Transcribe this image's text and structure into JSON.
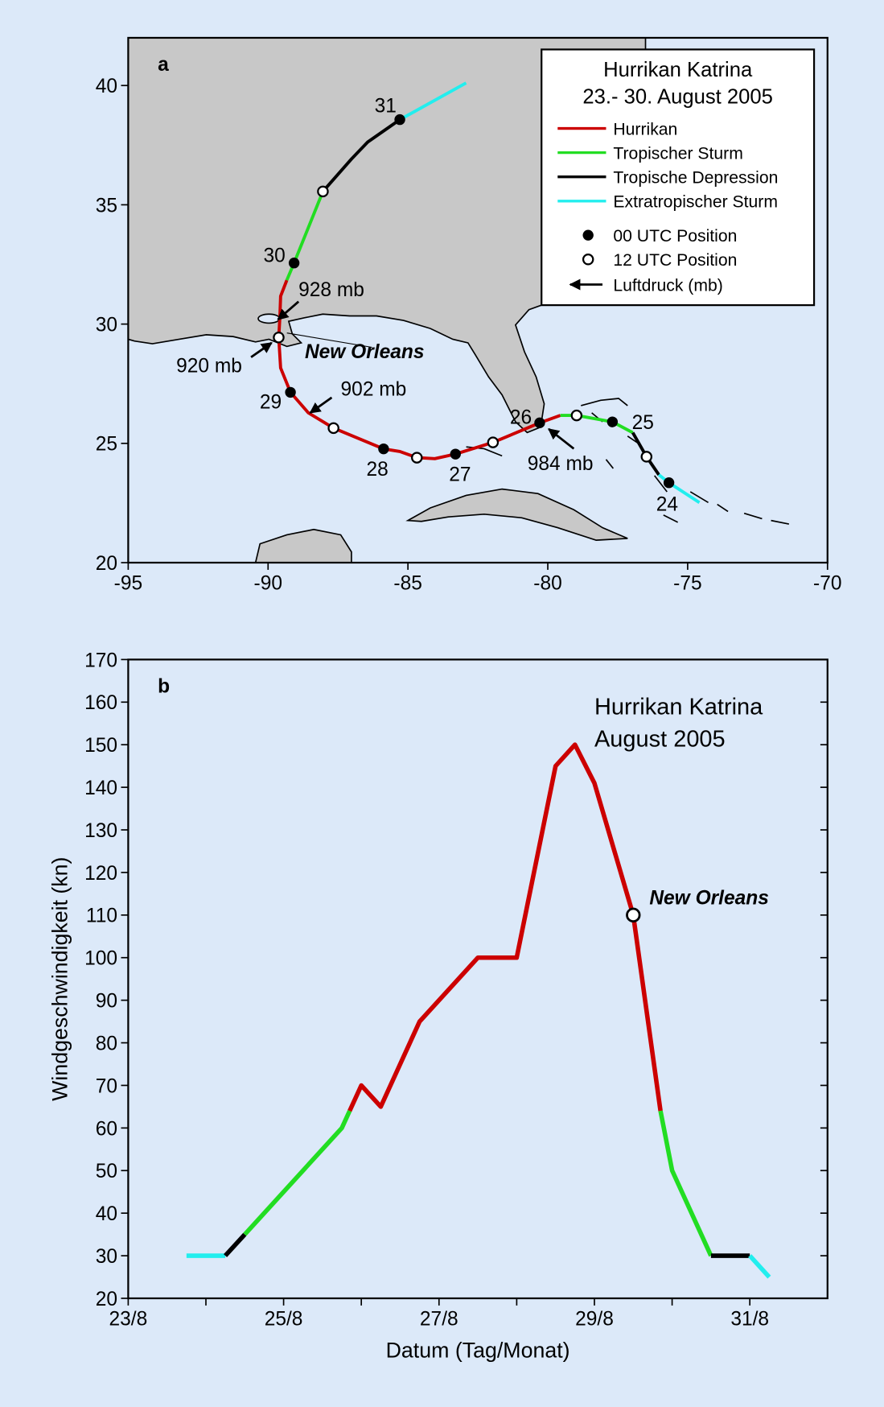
{
  "chart_data": [
    {
      "type": "map",
      "panel_label": "a",
      "title": "Hurrikan Katrina",
      "subtitle": "23.- 30. August 2005",
      "xlim": [
        -95,
        -70
      ],
      "ylim": [
        20,
        42
      ],
      "xticks": [
        -95,
        -90,
        -85,
        -80,
        -75,
        -70
      ],
      "yticks": [
        20,
        25,
        30,
        35,
        40
      ],
      "series": [
        {
          "name": "Hurrikan",
          "color": "#cc0000",
          "x": [
            -79.55,
            -80.29,
            -81.96,
            -83.3,
            -84.04,
            -84.68,
            -85.29,
            -85.87,
            -87.66,
            -88.56,
            -89.2,
            -89.55,
            -89.62,
            -89.58,
            -89.55,
            -89.33
          ],
          "values": [
            26.17,
            25.86,
            25.04,
            24.55,
            24.36,
            24.4,
            24.66,
            24.77,
            25.64,
            26.28,
            27.14,
            28.16,
            29.44,
            30.23,
            31.17,
            31.84
          ]
        },
        {
          "name": "Tropischer Sturm",
          "color": "#22dd22",
          "x": [
            -76.96,
            -77.69,
            -78.97,
            -79.55,
            null,
            -89.33,
            -89.07,
            -88.04
          ],
          "values": [
            25.45,
            25.9,
            26.17,
            26.17,
            null,
            31.84,
            32.56,
            35.56
          ]
        },
        {
          "name": "Tropische Depression",
          "color": "#000000",
          "x": [
            -76.03,
            -76.47,
            -76.96,
            null,
            -88.04,
            -87.02,
            -86.44,
            -85.29
          ],
          "values": [
            23.68,
            24.44,
            25.45,
            null,
            35.56,
            36.92,
            37.63,
            38.57
          ]
        },
        {
          "name": "Extratropischer Sturm",
          "color": "#22eeee",
          "x": [
            -74.58,
            -75.67,
            -76.03,
            null,
            -85.29,
            -82.92
          ],
          "values": [
            22.52,
            23.35,
            23.68,
            null,
            38.57,
            40.11
          ]
        }
      ],
      "markers_00utc": {
        "name": "00 UTC Position",
        "x": [
          -75.67,
          -77.69,
          -80.29,
          -83.3,
          -85.87,
          -89.2,
          -89.07,
          -85.29
        ],
        "values": [
          23.35,
          25.9,
          25.86,
          24.55,
          24.77,
          27.14,
          32.56,
          38.57
        ],
        "labels": [
          "24",
          "25",
          "26",
          "27",
          "28",
          "29",
          "30",
          "31"
        ]
      },
      "markers_12utc": {
        "name": "12 UTC Position",
        "x": [
          -76.47,
          -78.97,
          -81.96,
          -84.68,
          -87.66,
          -89.62,
          -88.04
        ],
        "values": [
          24.44,
          26.17,
          25.04,
          24.4,
          25.64,
          29.44,
          35.56
        ]
      },
      "pressure_legend": "Luftdruck (mb)",
      "annotations": [
        "928 mb",
        "920 mb",
        "902 mb",
        "984 mb"
      ],
      "city_label": "New Orleans"
    },
    {
      "type": "line",
      "panel_label": "b",
      "title": "Hurrikan Katrina",
      "subtitle": "August 2005",
      "x_label": "Datum (Tag/Monat)",
      "y_label": "Windgeschwindigkeit (kn)",
      "xlim": [
        23,
        32
      ],
      "ylim": [
        20,
        170
      ],
      "xticks": [
        {
          "value": 23,
          "label": "23/8"
        },
        {
          "value": 25,
          "label": "25/8"
        },
        {
          "value": 27,
          "label": "27/8"
        },
        {
          "value": 29,
          "label": "29/8"
        },
        {
          "value": 31,
          "label": "31/8"
        }
      ],
      "minor_xticks": [
        24,
        26,
        28,
        30
      ],
      "yticks": [
        20,
        30,
        40,
        50,
        60,
        70,
        80,
        90,
        100,
        110,
        120,
        130,
        140,
        150,
        160,
        170
      ],
      "series": [
        {
          "color": "#22eeee",
          "x": [
            23.75,
            24.25
          ],
          "values": [
            30,
            30
          ]
        },
        {
          "color": "#000000",
          "x": [
            24.25,
            24.5
          ],
          "values": [
            30,
            35
          ]
        },
        {
          "color": "#22dd22",
          "x": [
            24.5,
            25.75,
            25.85
          ],
          "values": [
            35,
            60,
            64
          ]
        },
        {
          "color": "#cc0000",
          "x": [
            25.85,
            26.0,
            26.25,
            26.75,
            27.5,
            28.0,
            28.5,
            28.75,
            29.0,
            29.5,
            29.85
          ],
          "values": [
            64,
            70,
            65,
            85,
            100,
            100,
            145,
            150,
            141,
            110,
            64
          ]
        },
        {
          "color": "#22dd22",
          "x": [
            29.85,
            30.0,
            30.5
          ],
          "values": [
            64,
            50,
            30
          ]
        },
        {
          "color": "#000000",
          "x": [
            30.5,
            31.0
          ],
          "values": [
            30,
            30
          ]
        },
        {
          "color": "#22eeee",
          "x": [
            31.0,
            31.25
          ],
          "values": [
            30,
            25
          ]
        }
      ],
      "highlight": {
        "label": "New Orleans",
        "x": 29.5,
        "value": 110
      }
    }
  ]
}
